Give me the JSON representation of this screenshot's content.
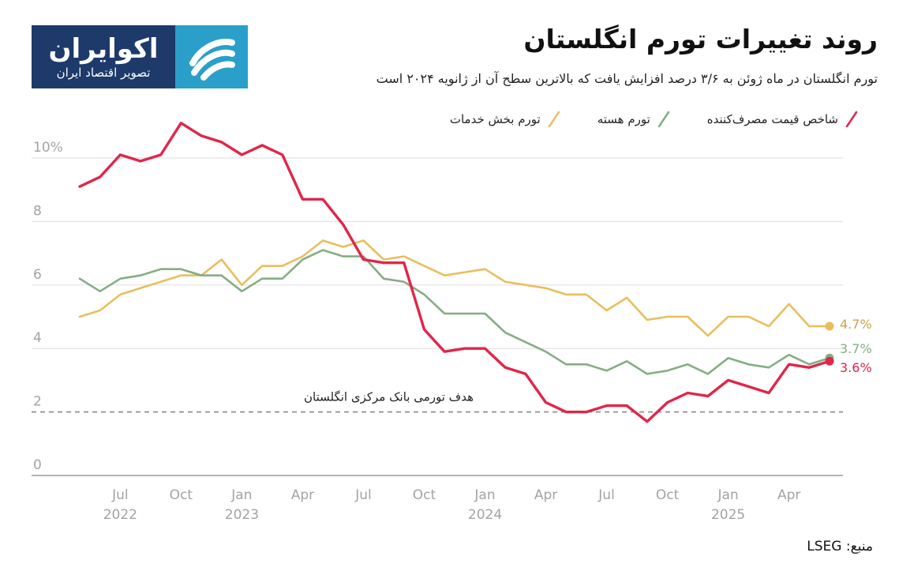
{
  "logo": {
    "name": "اکوایران",
    "tagline": "تصویر اقتصاد ایران"
  },
  "title": "روند تغییرات تورم انگلستان",
  "subtitle": "تورم انگلستان در ماه ژوئن به ۳/۶ درصد افزایش یافت که بالاترین سطح آن از ژانویه ۲۰۲۴ است",
  "source": "منبع: LSEG",
  "chart_data": {
    "type": "line",
    "y_axis": {
      "min": 0,
      "max": 10,
      "ticks": [
        {
          "value": 10,
          "label": "10%"
        },
        {
          "value": 8,
          "label": "8"
        },
        {
          "value": 6,
          "label": "6"
        },
        {
          "value": 4,
          "label": "4"
        },
        {
          "value": 2,
          "label": "2"
        },
        {
          "value": 0,
          "label": "0"
        }
      ]
    },
    "x": [
      "2022-05",
      "2022-06",
      "2022-07",
      "2022-08",
      "2022-09",
      "2022-10",
      "2022-11",
      "2022-12",
      "2023-01",
      "2023-02",
      "2023-03",
      "2023-04",
      "2023-05",
      "2023-06",
      "2023-07",
      "2023-08",
      "2023-09",
      "2023-10",
      "2023-11",
      "2023-12",
      "2024-01",
      "2024-02",
      "2024-03",
      "2024-04",
      "2024-05",
      "2024-06",
      "2024-07",
      "2024-08",
      "2024-09",
      "2024-10",
      "2024-11",
      "2024-12",
      "2025-01",
      "2025-02",
      "2025-03",
      "2025-04",
      "2025-05",
      "2025-06"
    ],
    "x_ticks": [
      {
        "x": "2022-07",
        "month": "Jul",
        "year": "2022"
      },
      {
        "x": "2022-10",
        "month": "Oct",
        "year": ""
      },
      {
        "x": "2023-01",
        "month": "Jan",
        "year": "2023"
      },
      {
        "x": "2023-04",
        "month": "Apr",
        "year": ""
      },
      {
        "x": "2023-07",
        "month": "Jul",
        "year": ""
      },
      {
        "x": "2023-10",
        "month": "Oct",
        "year": ""
      },
      {
        "x": "2024-01",
        "month": "Jan",
        "year": "2024"
      },
      {
        "x": "2024-04",
        "month": "Apr",
        "year": ""
      },
      {
        "x": "2024-07",
        "month": "Jul",
        "year": ""
      },
      {
        "x": "2024-10",
        "month": "Oct",
        "year": ""
      },
      {
        "x": "2025-01",
        "month": "Jan",
        "year": "2025"
      },
      {
        "x": "2025-04",
        "month": "Apr",
        "year": ""
      }
    ],
    "series": [
      {
        "name": "شاخص قیمت مصرف‌کننده",
        "color": "#e0264a",
        "end_label": "3.6%",
        "values": [
          9.1,
          9.4,
          10.1,
          9.9,
          10.1,
          11.1,
          10.7,
          10.5,
          10.1,
          10.4,
          10.1,
          8.7,
          8.7,
          7.9,
          6.8,
          6.7,
          6.7,
          4.6,
          3.9,
          4.0,
          4.0,
          3.4,
          3.2,
          2.3,
          2.0,
          2.0,
          2.2,
          2.2,
          1.7,
          2.3,
          2.6,
          2.5,
          3.0,
          2.8,
          2.6,
          3.5,
          3.4,
          3.6
        ]
      },
      {
        "name": "تورم هسته",
        "color": "#86ad84",
        "end_label": "3.7%",
        "values": [
          6.2,
          5.8,
          6.2,
          6.3,
          6.5,
          6.5,
          6.3,
          6.3,
          5.8,
          6.2,
          6.2,
          6.8,
          7.1,
          6.9,
          6.9,
          6.2,
          6.1,
          5.7,
          5.1,
          5.1,
          5.1,
          4.5,
          4.2,
          3.9,
          3.5,
          3.5,
          3.3,
          3.6,
          3.2,
          3.3,
          3.5,
          3.2,
          3.7,
          3.5,
          3.4,
          3.8,
          3.5,
          3.7
        ]
      },
      {
        "name": "تورم بخش خدمات",
        "color": "#e8bf5e",
        "end_label": "4.7%",
        "values": [
          5.0,
          5.2,
          5.7,
          5.9,
          6.1,
          6.3,
          6.3,
          6.8,
          6.0,
          6.6,
          6.6,
          6.9,
          7.4,
          7.2,
          7.4,
          6.8,
          6.9,
          6.6,
          6.3,
          6.4,
          6.5,
          6.1,
          6.0,
          5.9,
          5.7,
          5.7,
          5.2,
          5.6,
          4.9,
          5.0,
          5.0,
          4.4,
          5.0,
          5.0,
          4.7,
          5.4,
          4.7,
          4.7
        ]
      }
    ],
    "reference_line": {
      "value": 2,
      "label": "هدف تورمی بانک مرکزی انگلستان",
      "style": "dashed"
    },
    "legend_position": "top",
    "grid": true
  }
}
